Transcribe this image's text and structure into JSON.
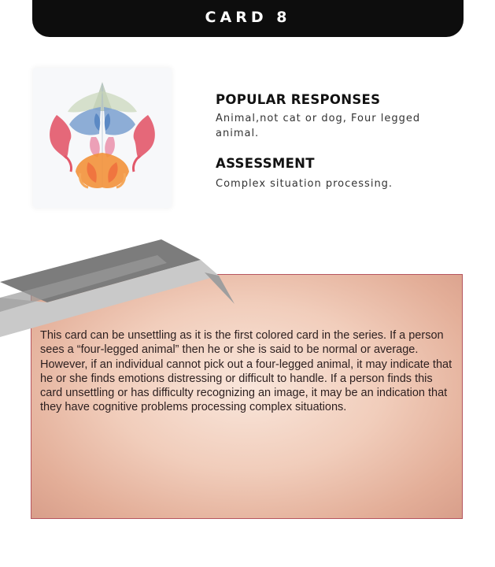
{
  "header": {
    "title": "CARD 8"
  },
  "popular_responses": {
    "heading": "POPULAR RESPONSES",
    "line1": "Animal,not cat or dog, Four legged",
    "line2": "animal."
  },
  "assessment": {
    "heading": "ASSESSMENT",
    "text": "Complex situation processing."
  },
  "description": {
    "text": "This card can be unsettling as it is the first colored card in the series. If a person sees a “four-legged animal” then he or she is said to be normal or average. However, if an individual cannot pick out a four-legged animal, it may indicate that he or she finds emotions distressing or difficult to handle. If a person finds this card unsettling or has difficulty recognizing an image, it may be an indication that they have cognitive problems processing complex situations."
  },
  "colors": {
    "header_bg": "#0d0d0d",
    "box_border": "#b6555f",
    "ribbon_dark": "#7c7c7c",
    "ribbon_light": "#c9c9c9"
  },
  "icons": {
    "inkblot": "inkblot-card-image",
    "ribbon": "folded-ribbon-decoration"
  }
}
